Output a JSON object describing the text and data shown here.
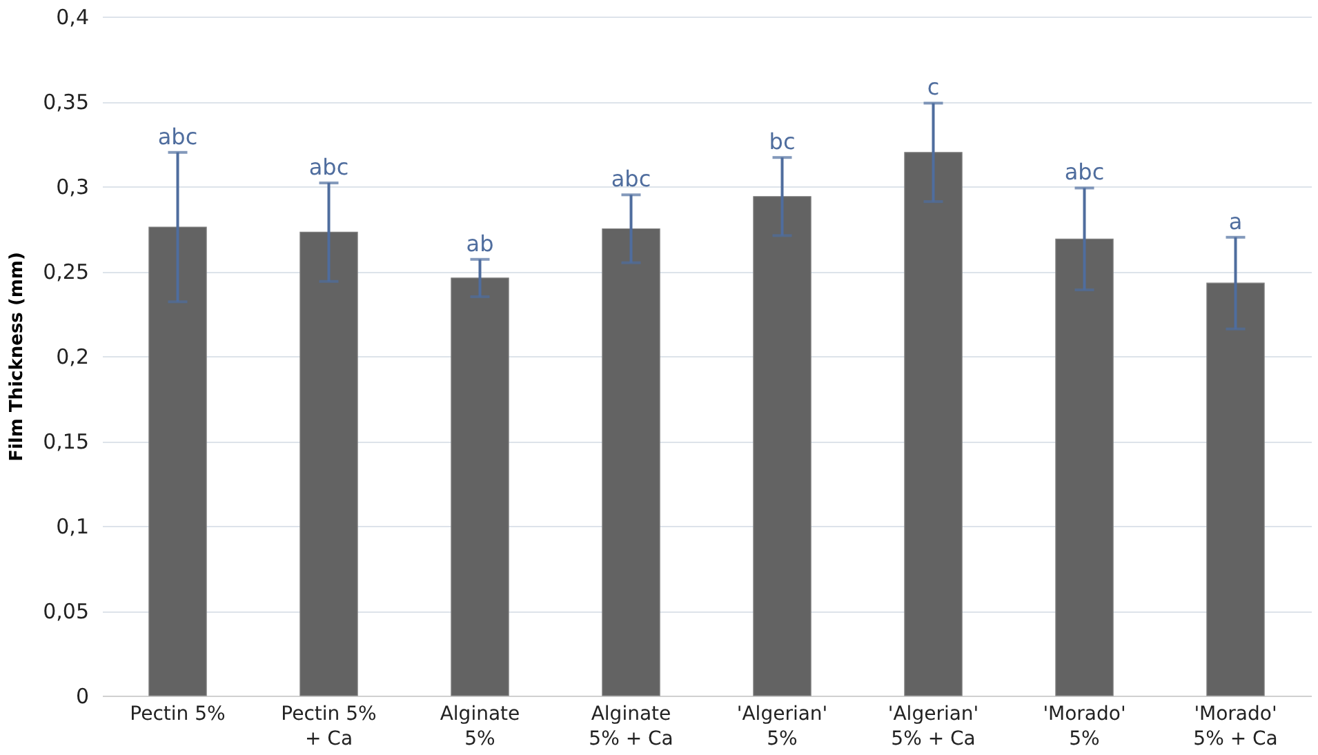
{
  "chart_data": {
    "type": "bar",
    "ylabel": "Film Thickness (mm)",
    "categories": [
      "Pectin 5%",
      "Pectin 5% + Ca",
      "Alginate 5%",
      "Alginate 5% + Ca",
      "'Algerian' 5%",
      "'Algerian' 5% + Ca",
      "'Morado' 5%",
      "'Morado' 5% + Ca"
    ],
    "series": [
      {
        "color": "#636363",
        "values": [
          0.276,
          0.273,
          0.246,
          0.275,
          0.294,
          0.32,
          0.269,
          0.243
        ],
        "errors": [
          0.044,
          0.029,
          0.011,
          0.02,
          0.023,
          0.029,
          0.03,
          0.027
        ]
      }
    ],
    "annotations": [
      {
        "text": "abc",
        "x": "Pectin 5%",
        "y": 0.32
      },
      {
        "text": "abc",
        "x": "Pectin 5% + Ca",
        "y": 0.302
      },
      {
        "text": "ab",
        "x": "Alginate 5%",
        "y": 0.257
      },
      {
        "text": "abc",
        "x": "Alginate 5% + Ca",
        "y": 0.295
      },
      {
        "text": "bc",
        "x": "'Algerian' 5%",
        "y": 0.317
      },
      {
        "text": "c",
        "x": "'Algerian' 5% + Ca",
        "y": 0.349
      },
      {
        "text": "abc",
        "x": "'Morado' 5%",
        "y": 0.299
      },
      {
        "text": "a",
        "x": "'Morado' 5% + Ca",
        "y": 0.27
      }
    ],
    "ylim": [
      0,
      0.4
    ],
    "yticks": [
      {
        "value": 0,
        "label": "0"
      },
      {
        "value": 0.05,
        "label": "0,05"
      },
      {
        "value": 0.1,
        "label": "0,1"
      },
      {
        "value": 0.15,
        "label": "0,15"
      },
      {
        "value": 0.2,
        "label": "0,2"
      },
      {
        "value": 0.25,
        "label": "0,25"
      },
      {
        "value": 0.3,
        "label": "0,3"
      },
      {
        "value": 0.35,
        "label": "0,35"
      },
      {
        "value": 0.4,
        "label": "0,4"
      }
    ],
    "grid": "y"
  }
}
